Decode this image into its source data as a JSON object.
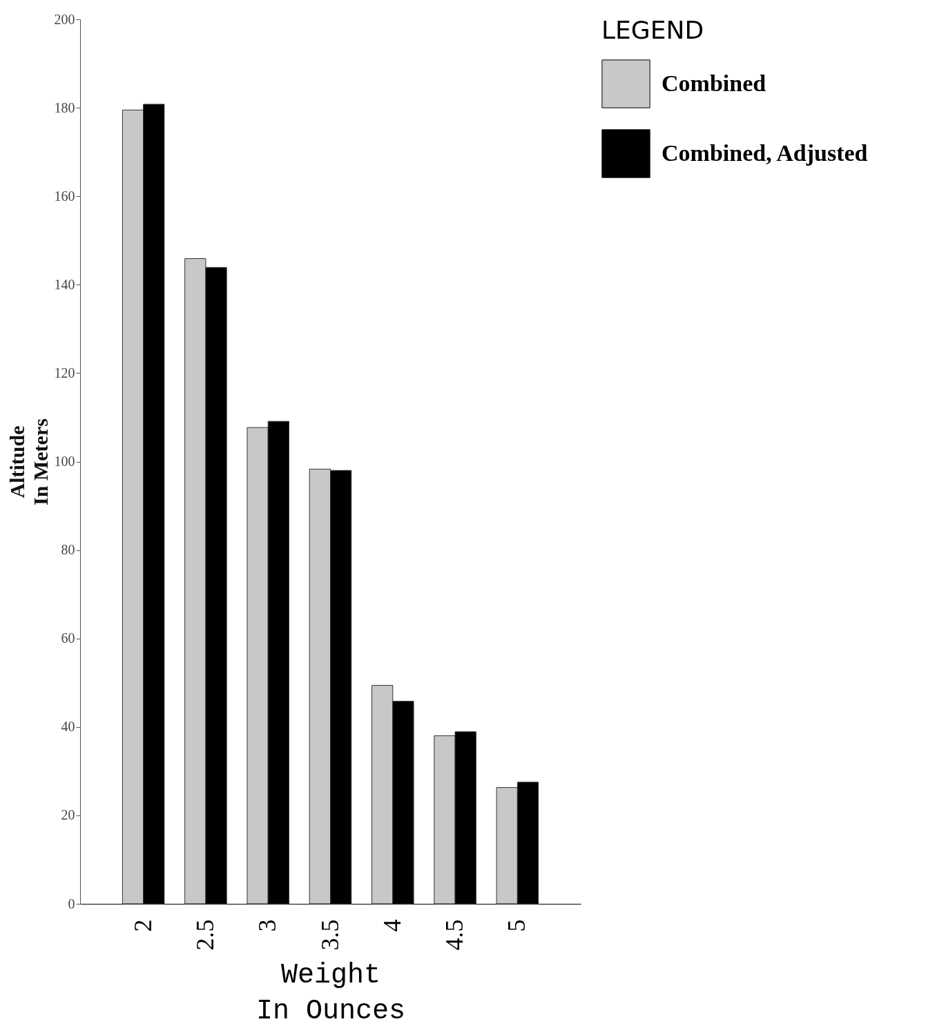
{
  "chart_data": {
    "type": "bar",
    "xlabel": "Weight\nIn Ounces",
    "ylabel": "Altitude\nIn Meters",
    "legend_title": "LEGEND",
    "categories": [
      "2",
      "2.5",
      "3",
      "3.5",
      "4",
      "4.5",
      "5"
    ],
    "series": [
      {
        "name": "Combined",
        "color": "#c8c8c8",
        "values": [
          179.5,
          145.9,
          107.7,
          98.3,
          49.4,
          38.0,
          26.3
        ]
      },
      {
        "name": "Combined, Adjusted",
        "color": "#000000",
        "values": [
          180.8,
          143.9,
          109.1,
          98.0,
          45.8,
          38.9,
          27.5
        ]
      }
    ],
    "ylim": [
      0,
      200
    ],
    "yticks": [
      0,
      20,
      40,
      60,
      80,
      100,
      120,
      140,
      160,
      180,
      200
    ],
    "grid": false,
    "legend": "top right"
  }
}
